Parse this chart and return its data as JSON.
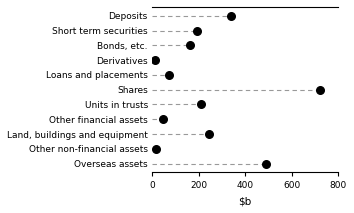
{
  "categories": [
    "Deposits",
    "Short term securities",
    "Bonds, etc.",
    "Derivatives",
    "Loans and placements",
    "Shares",
    "Units in trusts",
    "Other financial assets",
    "Land, buildings and equipment",
    "Other non-financial assets",
    "Overseas assets"
  ],
  "values": [
    340,
    195,
    165,
    12,
    75,
    720,
    210,
    48,
    245,
    18,
    490
  ],
  "dot_color": "#000000",
  "line_color": "#999999",
  "xlim": [
    0,
    800
  ],
  "xticks": [
    0,
    200,
    400,
    600,
    800
  ],
  "background_color": "#ffffff",
  "dot_size": 30,
  "line_style": "--",
  "line_width": 0.8,
  "label_fontsize": 6.5,
  "tick_fontsize": 6.5,
  "xlabel_fontsize": 7.5
}
